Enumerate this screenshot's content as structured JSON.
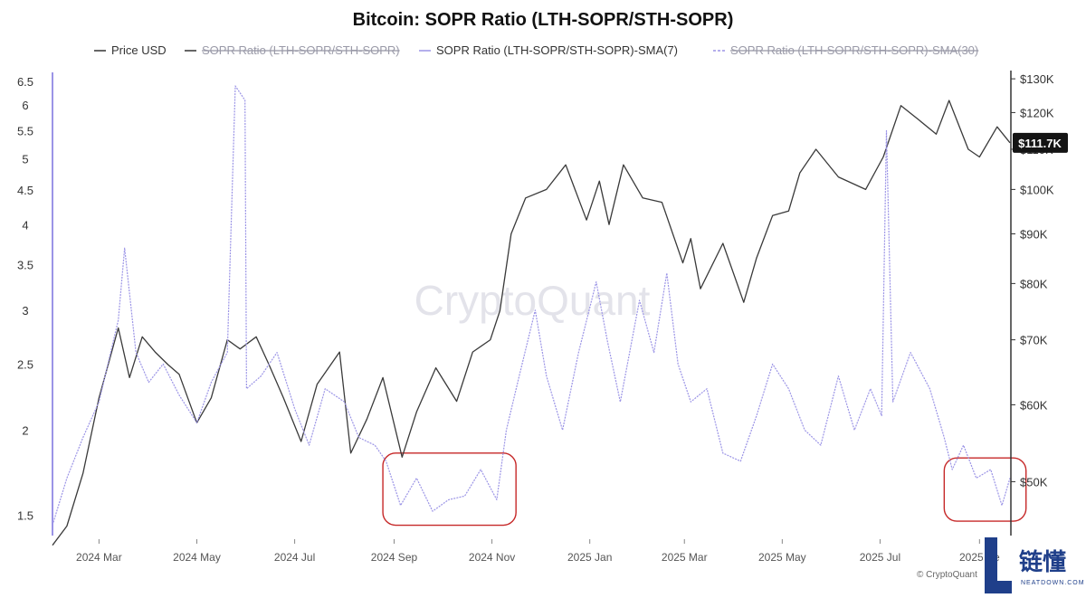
{
  "chart_data": {
    "type": "line",
    "title": "Bitcoin: SOPR Ratio (LTH-SOPR/STH-SOPR)",
    "legend": [
      {
        "label": "Price USD",
        "color": "#333333",
        "visible": true
      },
      {
        "label": "SOPR Ratio (LTH-SOPR/STH-SOPR)",
        "color": "#333333",
        "visible": false
      },
      {
        "label": "SOPR Ratio (LTH-SOPR/STH-SOPR)-SMA(7)",
        "color": "#9b94e6",
        "visible": true
      },
      {
        "label": "SOPR Ratio (LTH-SOPR/STH-SOPR)-SMA(30)",
        "color": "#9b94e6",
        "visible": false
      }
    ],
    "legend_position": "top",
    "x_ticks": [
      "2024 Mar",
      "2024 May",
      "2024 Jul",
      "2024 Sep",
      "2024 Nov",
      "2025 Jan",
      "2025 Mar",
      "2025 May",
      "2025 Jul",
      "2025 Se"
    ],
    "x_range": [
      "2024-02-01",
      "2025-09-20"
    ],
    "y_left": {
      "ticks": [
        "6.5",
        "6",
        "5.5",
        "5",
        "4.5",
        "4",
        "3.5",
        "3",
        "2.5",
        "2",
        "1.5"
      ],
      "scale": "log",
      "range": [
        1.4,
        6.7
      ]
    },
    "y_right": {
      "ticks": [
        "$130K",
        "$120K",
        "$110K",
        "$100K",
        "$90K",
        "$80K",
        "$70K",
        "$60K",
        "$50K"
      ],
      "scale": "log",
      "range": [
        44000,
        132000
      ]
    },
    "last_price_label": "$111.7K",
    "series": [
      {
        "name": "Price USD",
        "axis": "right",
        "color": "#3a3a3a",
        "points": [
          [
            "2024-02-01",
            43000
          ],
          [
            "2024-02-10",
            45000
          ],
          [
            "2024-02-20",
            51000
          ],
          [
            "2024-03-01",
            61000
          ],
          [
            "2024-03-13",
            72000
          ],
          [
            "2024-03-20",
            64000
          ],
          [
            "2024-03-28",
            70500
          ],
          [
            "2024-04-05",
            68000
          ],
          [
            "2024-04-13",
            66000
          ],
          [
            "2024-04-20",
            64500
          ],
          [
            "2024-05-01",
            57500
          ],
          [
            "2024-05-10",
            61000
          ],
          [
            "2024-05-20",
            70000
          ],
          [
            "2024-05-28",
            68500
          ],
          [
            "2024-06-07",
            70500
          ],
          [
            "2024-06-15",
            66000
          ],
          [
            "2024-06-24",
            61000
          ],
          [
            "2024-07-05",
            55000
          ],
          [
            "2024-07-15",
            63000
          ],
          [
            "2024-07-29",
            68000
          ],
          [
            "2024-08-05",
            53500
          ],
          [
            "2024-08-15",
            58000
          ],
          [
            "2024-08-25",
            64000
          ],
          [
            "2024-09-06",
            53000
          ],
          [
            "2024-09-15",
            59000
          ],
          [
            "2024-09-27",
            65500
          ],
          [
            "2024-10-10",
            60500
          ],
          [
            "2024-10-20",
            68000
          ],
          [
            "2024-10-31",
            70000
          ],
          [
            "2024-11-06",
            75000
          ],
          [
            "2024-11-13",
            90000
          ],
          [
            "2024-11-22",
            98000
          ],
          [
            "2024-12-05",
            100000
          ],
          [
            "2024-12-17",
            106000
          ],
          [
            "2024-12-30",
            93000
          ],
          [
            "2025-01-07",
            102000
          ],
          [
            "2025-01-13",
            92000
          ],
          [
            "2025-01-22",
            106000
          ],
          [
            "2025-02-03",
            98000
          ],
          [
            "2025-02-15",
            97000
          ],
          [
            "2025-02-28",
            84000
          ],
          [
            "2025-03-05",
            89000
          ],
          [
            "2025-03-11",
            79000
          ],
          [
            "2025-03-25",
            88000
          ],
          [
            "2025-04-07",
            76500
          ],
          [
            "2025-04-15",
            85000
          ],
          [
            "2025-04-25",
            94000
          ],
          [
            "2025-05-05",
            95000
          ],
          [
            "2025-05-12",
            104000
          ],
          [
            "2025-05-22",
            110000
          ],
          [
            "2025-06-05",
            103000
          ],
          [
            "2025-06-22",
            100000
          ],
          [
            "2025-07-03",
            108000
          ],
          [
            "2025-07-14",
            122000
          ],
          [
            "2025-07-25",
            118000
          ],
          [
            "2025-08-05",
            114000
          ],
          [
            "2025-08-13",
            123500
          ],
          [
            "2025-08-25",
            110000
          ],
          [
            "2025-09-01",
            108000
          ],
          [
            "2025-09-12",
            116000
          ],
          [
            "2025-09-20",
            111700
          ]
        ]
      },
      {
        "name": "SOPR Ratio (LTH-SOPR/STH-SOPR)-SMA(7)",
        "axis": "left",
        "color": "#9b94e6",
        "points": [
          [
            "2024-02-01",
            1.45
          ],
          [
            "2024-02-10",
            1.7
          ],
          [
            "2024-02-20",
            1.95
          ],
          [
            "2024-03-01",
            2.2
          ],
          [
            "2024-03-13",
            2.9
          ],
          [
            "2024-03-17",
            3.7
          ],
          [
            "2024-03-24",
            2.6
          ],
          [
            "2024-04-01",
            2.35
          ],
          [
            "2024-04-10",
            2.5
          ],
          [
            "2024-04-20",
            2.25
          ],
          [
            "2024-05-01",
            2.05
          ],
          [
            "2024-05-10",
            2.35
          ],
          [
            "2024-05-20",
            2.6
          ],
          [
            "2024-05-25",
            6.4
          ],
          [
            "2024-05-31",
            6.1
          ],
          [
            "2024-06-01",
            2.3
          ],
          [
            "2024-06-10",
            2.4
          ],
          [
            "2024-06-20",
            2.6
          ],
          [
            "2024-07-01",
            2.15
          ],
          [
            "2024-07-10",
            1.9
          ],
          [
            "2024-07-20",
            2.3
          ],
          [
            "2024-08-01",
            2.2
          ],
          [
            "2024-08-10",
            1.95
          ],
          [
            "2024-08-20",
            1.9
          ],
          [
            "2024-08-27",
            1.8
          ],
          [
            "2024-09-05",
            1.55
          ],
          [
            "2024-09-15",
            1.7
          ],
          [
            "2024-09-25",
            1.52
          ],
          [
            "2024-10-05",
            1.58
          ],
          [
            "2024-10-15",
            1.6
          ],
          [
            "2024-10-25",
            1.75
          ],
          [
            "2024-11-04",
            1.58
          ],
          [
            "2024-11-10",
            2.0
          ],
          [
            "2024-11-18",
            2.4
          ],
          [
            "2024-11-28",
            3.0
          ],
          [
            "2024-12-05",
            2.4
          ],
          [
            "2024-12-15",
            2.0
          ],
          [
            "2024-12-25",
            2.6
          ],
          [
            "2025-01-05",
            3.3
          ],
          [
            "2025-01-12",
            2.7
          ],
          [
            "2025-01-20",
            2.2
          ],
          [
            "2025-02-01",
            3.1
          ],
          [
            "2025-02-10",
            2.6
          ],
          [
            "2025-02-18",
            3.4
          ],
          [
            "2025-02-25",
            2.5
          ],
          [
            "2025-03-05",
            2.2
          ],
          [
            "2025-03-15",
            2.3
          ],
          [
            "2025-03-25",
            1.85
          ],
          [
            "2025-04-05",
            1.8
          ],
          [
            "2025-04-15",
            2.1
          ],
          [
            "2025-04-25",
            2.5
          ],
          [
            "2025-05-05",
            2.3
          ],
          [
            "2025-05-15",
            2.0
          ],
          [
            "2025-05-25",
            1.9
          ],
          [
            "2025-06-05",
            2.4
          ],
          [
            "2025-06-15",
            2.0
          ],
          [
            "2025-06-25",
            2.3
          ],
          [
            "2025-07-02",
            2.1
          ],
          [
            "2025-07-05",
            5.5
          ],
          [
            "2025-07-09",
            2.2
          ],
          [
            "2025-07-20",
            2.6
          ],
          [
            "2025-08-01",
            2.3
          ],
          [
            "2025-08-10",
            1.95
          ],
          [
            "2025-08-15",
            1.75
          ],
          [
            "2025-08-22",
            1.9
          ],
          [
            "2025-08-30",
            1.7
          ],
          [
            "2025-09-08",
            1.75
          ],
          [
            "2025-09-15",
            1.55
          ],
          [
            "2025-09-20",
            1.7
          ]
        ]
      }
    ],
    "annotations": [
      {
        "type": "rounded-rect",
        "color": "#c62828",
        "x_from": "2024-08-25",
        "x_to": "2024-11-16",
        "y_from": 1.45,
        "y_to": 1.85
      },
      {
        "type": "rounded-rect",
        "color": "#c62828",
        "x_from": "2025-08-10",
        "x_to": "2025-09-30",
        "y_from": 1.47,
        "y_to": 1.82
      }
    ],
    "watermark": "CryptoQuant",
    "source": "© CryptoQuant"
  },
  "logo": {
    "text": "链懂",
    "subtext": "NEATDOWN.COM",
    "letter": "L"
  }
}
